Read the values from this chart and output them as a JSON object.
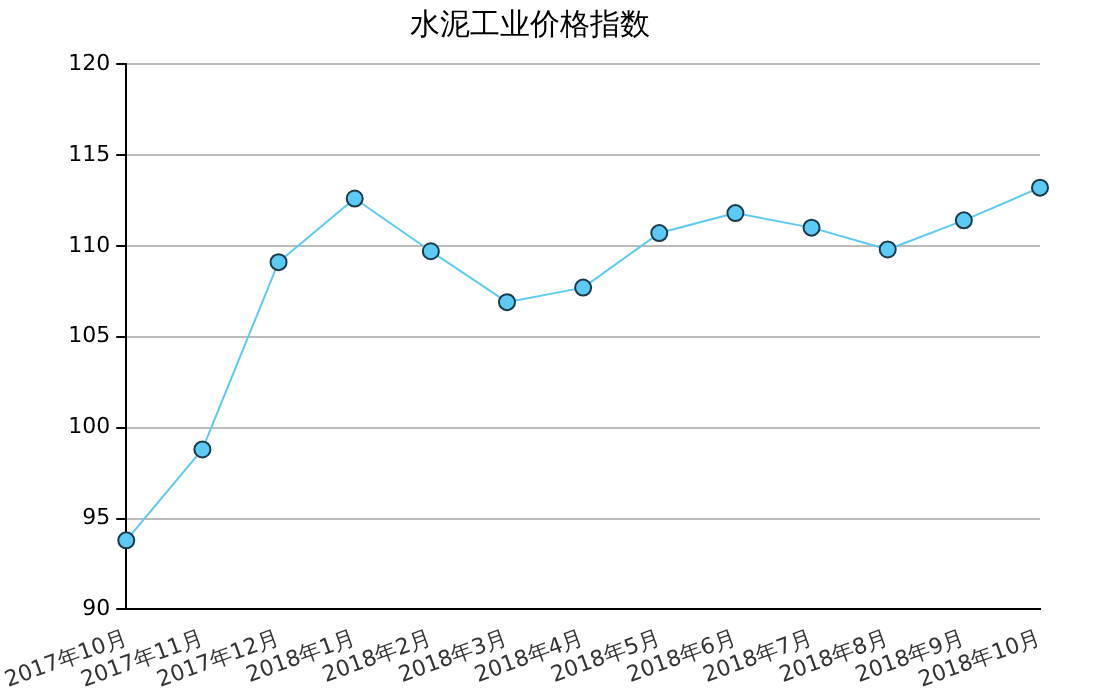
{
  "chart_data": {
    "type": "line",
    "title": "水泥工业价格指数",
    "categories": [
      "2017年10月",
      "2017年11月",
      "2017年12月",
      "2018年1月",
      "2018年2月",
      "2018年3月",
      "2018年4月",
      "2018年5月",
      "2018年6月",
      "2018年7月",
      "2018年8月",
      "2018年9月",
      "2018年10月"
    ],
    "series": [
      {
        "color": "#5bcbf5",
        "values": [
          93.8,
          98.8,
          109.1,
          112.6,
          109.7,
          106.9,
          107.7,
          110.7,
          111.8,
          111.0,
          109.8,
          111.4,
          113.2
        ]
      }
    ],
    "ylim": [
      90,
      120
    ],
    "yticks": [
      90,
      95,
      100,
      105,
      110,
      115,
      120
    ],
    "grid": "y",
    "legend": false,
    "marker": "circle",
    "line_style": "solid"
  }
}
